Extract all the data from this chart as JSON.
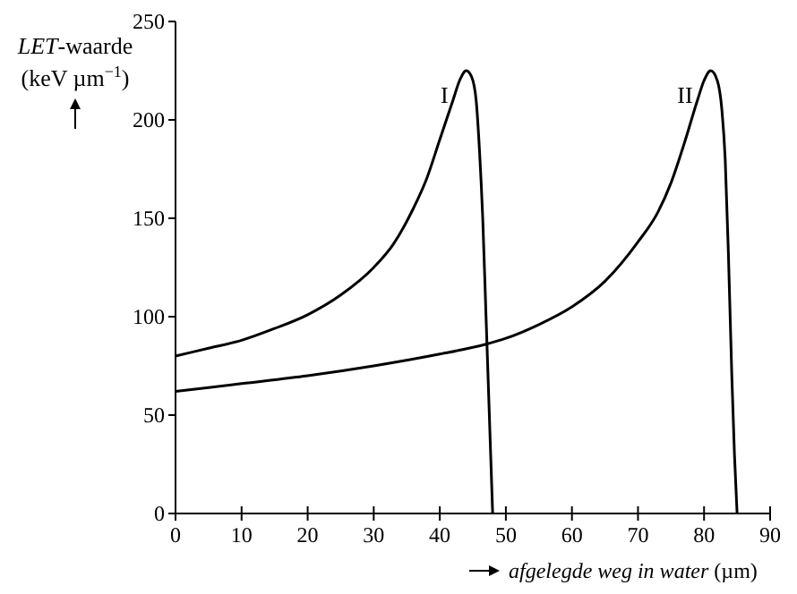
{
  "chart_data": {
    "type": "line",
    "ylabel": "LET-waarde (keV µm$^{−1}$)",
    "xlabel": "afgelegde weg in water (µm)",
    "xlim": [
      0,
      90
    ],
    "ylim": [
      0,
      250
    ],
    "xticks": [
      0,
      10,
      20,
      30,
      40,
      50,
      60,
      70,
      80,
      90
    ],
    "yticks": [
      0,
      50,
      100,
      150,
      200,
      250
    ],
    "grid": false,
    "marker": "none",
    "line_style": "solid",
    "series": [
      {
        "name": "I",
        "color": "#000000",
        "x": [
          0,
          5,
          10,
          15,
          20,
          25,
          30,
          33,
          36,
          38,
          40,
          42,
          43,
          44,
          44.8,
          45.5,
          46,
          46.5,
          47,
          47.5,
          48
        ],
        "values": [
          80,
          84,
          88,
          94,
          101,
          111,
          125,
          137,
          155,
          170,
          190,
          210,
          220,
          225,
          222,
          210,
          185,
          150,
          100,
          50,
          0
        ]
      },
      {
        "name": "II",
        "color": "#000000",
        "x": [
          0,
          10,
          20,
          30,
          40,
          47,
          50,
          55,
          60,
          65,
          70,
          73,
          75,
          77,
          79,
          80,
          81,
          82,
          82.7,
          83.2,
          83.7,
          84.2,
          84.6,
          85
        ],
        "values": [
          62,
          66,
          70,
          75,
          81,
          86,
          89,
          96,
          105,
          118,
          138,
          153,
          168,
          188,
          210,
          220,
          225,
          220,
          205,
          180,
          130,
          70,
          30,
          0
        ]
      }
    ]
  }
}
